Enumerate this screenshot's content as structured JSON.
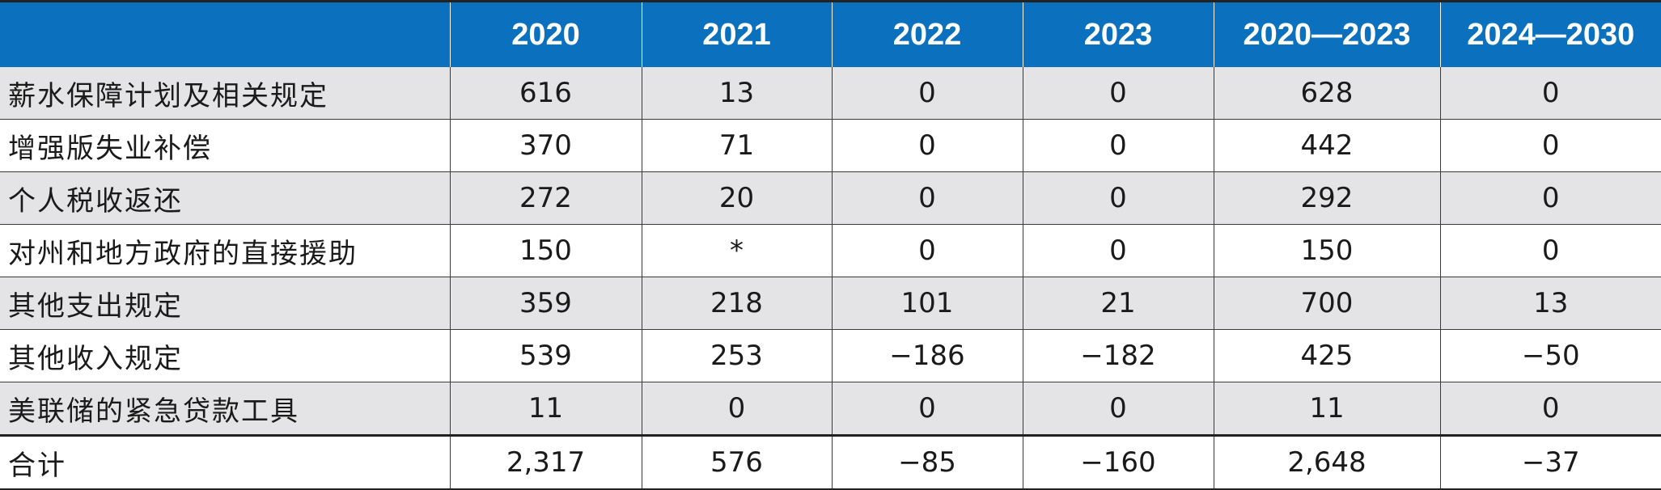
{
  "chart_data": {
    "type": "table",
    "columns": [
      "",
      "2020",
      "2021",
      "2022",
      "2023",
      "2020—2023",
      "2024—2030"
    ],
    "rows": [
      {
        "label": "薪水保障计划及相关规定",
        "values": [
          "616",
          "13",
          "0",
          "0",
          "628",
          "0"
        ]
      },
      {
        "label": "增强版失业补偿",
        "values": [
          "370",
          "71",
          "0",
          "0",
          "442",
          "0"
        ]
      },
      {
        "label": "个人税收返还",
        "values": [
          "272",
          "20",
          "0",
          "0",
          "292",
          "0"
        ]
      },
      {
        "label": "对州和地方政府的直接援助",
        "values": [
          "150",
          "*",
          "0",
          "0",
          "150",
          "0"
        ]
      },
      {
        "label": "其他支出规定",
        "values": [
          "359",
          "218",
          "101",
          "21",
          "700",
          "13"
        ]
      },
      {
        "label": "其他收入规定",
        "values": [
          "539",
          "253",
          "−186",
          "−182",
          "425",
          "−50"
        ]
      },
      {
        "label": "美联储的紧急贷款工具",
        "values": [
          "11",
          "0",
          "0",
          "0",
          "11",
          "0"
        ]
      },
      {
        "label": "合计",
        "values": [
          "2,317",
          "576",
          "−85",
          "−160",
          "2,648",
          "−37"
        ]
      }
    ]
  },
  "colors": {
    "header_bg": "#0b70bd",
    "header_text": "#ffffff",
    "shaded_row": "#e4e4e6",
    "plain_row": "#ffffff"
  }
}
